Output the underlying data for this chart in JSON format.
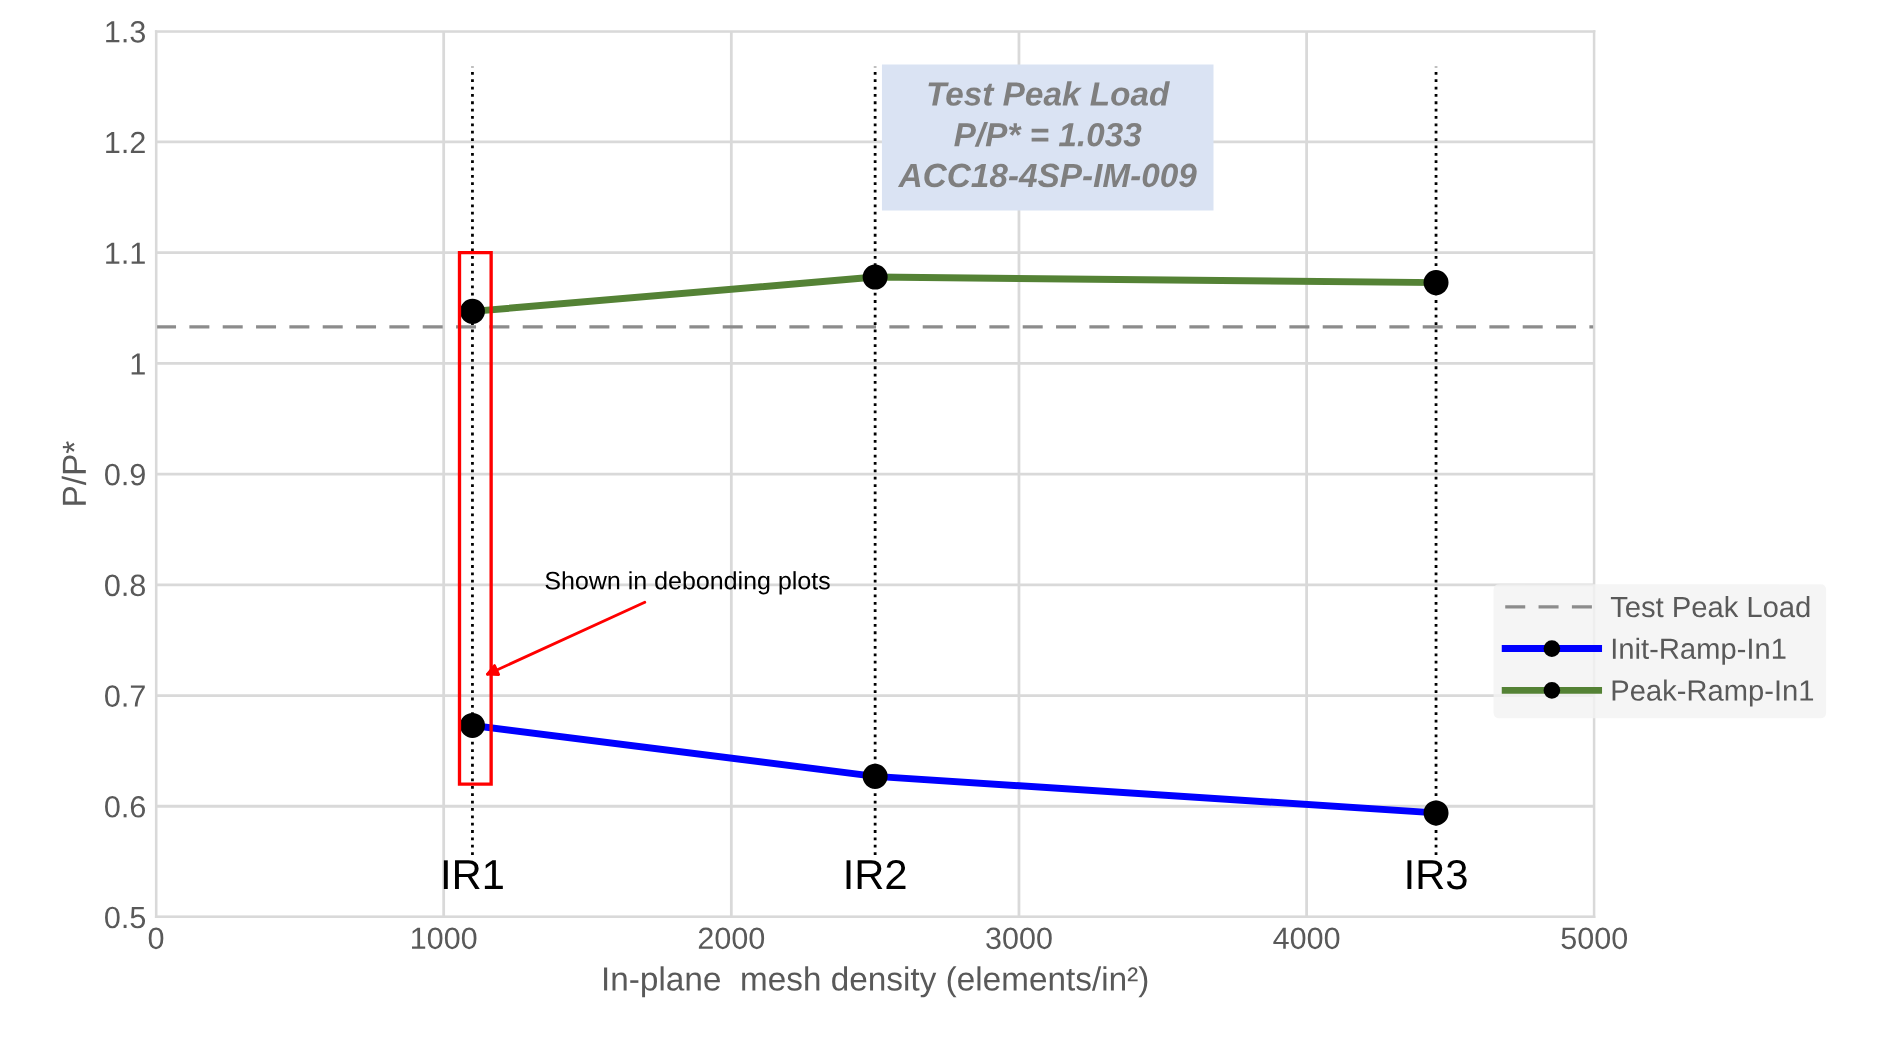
{
  "chart_data": {
    "type": "line",
    "xlabel": "In-plane  mesh density (elements/in²)",
    "ylabel": "P/P*",
    "x": [
      1100,
      2500,
      4450
    ],
    "series": [
      {
        "name": "Init-Ramp-In1",
        "color": "#0000ff",
        "values": [
          0.673,
          0.627,
          0.594
        ]
      },
      {
        "name": "Peak-Ramp-In1",
        "color": "#548235",
        "values": [
          1.047,
          1.078,
          1.073
        ]
      }
    ],
    "ref_lines": [
      {
        "axis": "y",
        "value": 1.033,
        "label": "Test Peak Load",
        "color": "#8c8c8c",
        "line_style": "dashed"
      },
      {
        "axis": "x",
        "value": 1100,
        "label": "IR1",
        "color": "#000000",
        "line_style": "dotted"
      },
      {
        "axis": "x",
        "value": 2500,
        "label": "IR2",
        "color": "#000000",
        "line_style": "dotted"
      },
      {
        "axis": "x",
        "value": 4450,
        "label": "IR3",
        "color": "#000000",
        "line_style": "dotted"
      }
    ],
    "annotations": [
      "Test Peak Load\nP/P* = 1.033\nACC18-4SP-IM-009",
      "Shown in debonding plots"
    ],
    "xlim": [
      0,
      5000
    ],
    "xticks": [
      0,
      1000,
      2000,
      3000,
      4000,
      5000
    ],
    "ylim": [
      0.5,
      1.3
    ],
    "yticks": [
      0.5,
      0.6,
      0.7,
      0.8,
      0.9,
      1,
      1.1,
      1.2,
      1.3
    ],
    "grid": true,
    "legend": "right",
    "marker": "circle",
    "line_style": "solid"
  }
}
